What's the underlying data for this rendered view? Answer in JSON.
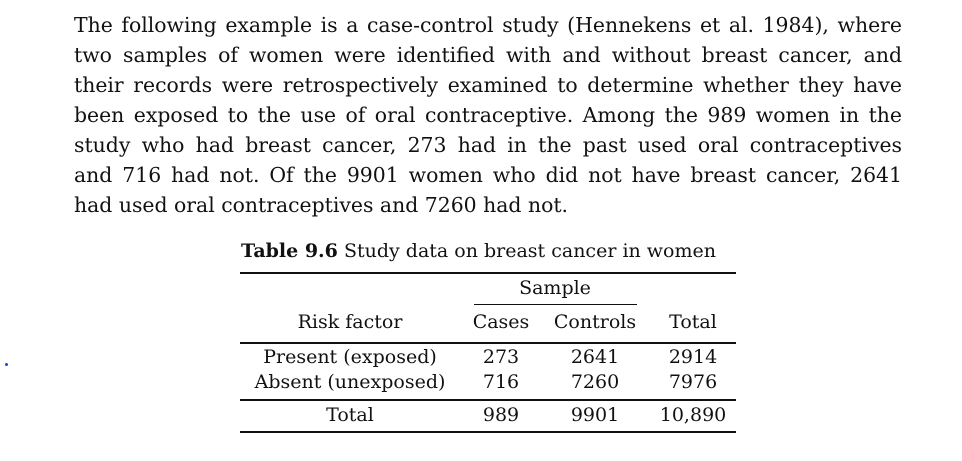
{
  "paragraph": [
    "The following example is a case-control study (Hennekens et al. 1984), where",
    "two samples of women were identified with and without breast cancer, and",
    "their records were retrospectively examined to determine whether they have",
    "been exposed to the use of oral contraceptive. Among the 989 women in the",
    "study who had breast cancer, 273 had in the past used oral contraceptives",
    "and 716 had not. Of the 9901 women who did not have breast cancer, 2641",
    "had used oral contraceptives and 7260 had not."
  ],
  "table": {
    "caption_number": "Table 9.6",
    "caption_text": "Study data on breast cancer in women",
    "group_header": "Sample",
    "headers": {
      "risk": "Risk factor",
      "cases": "Cases",
      "controls": "Controls",
      "total": "Total"
    },
    "rows": [
      {
        "label": "Present (exposed)",
        "cases": "273",
        "controls": "2641",
        "total": "2914"
      },
      {
        "label": "Absent (unexposed)",
        "cases": "716",
        "controls": "7260",
        "total": "7976"
      }
    ],
    "total_row": {
      "label": "Total",
      "cases": "989",
      "controls": "9901",
      "total": "10,890"
    }
  }
}
